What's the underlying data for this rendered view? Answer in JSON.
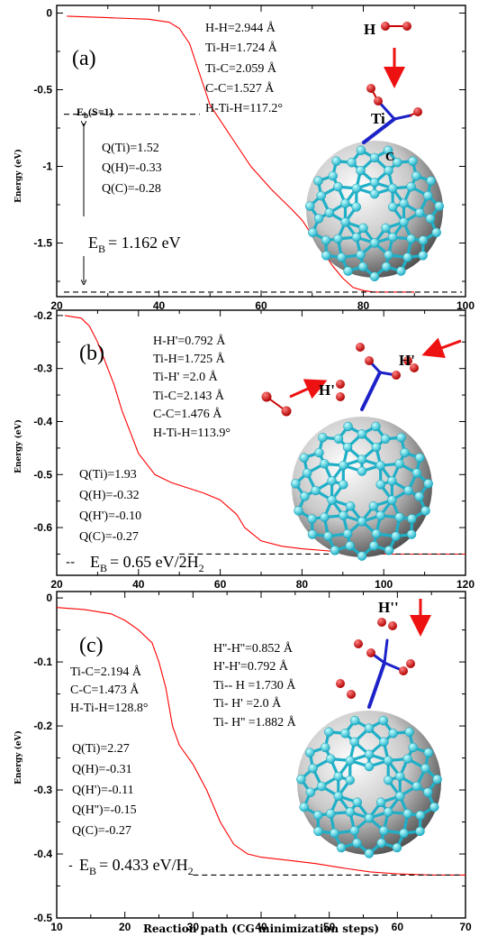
{
  "colors": {
    "curve": "#ff0000",
    "atom_h": "#cc0000",
    "atom_c": "#33d6d6",
    "bond_c": "#1fb0c8",
    "atom_ti": "#1c22c8",
    "arrow": "#ee1111",
    "sphere_light": "#ffffff",
    "sphere_dark": "#4c4c4c"
  },
  "ylabel": "Energy (eV)",
  "xlabel": "Reaction path (CG minimization steps)",
  "chart_data": [
    {
      "type": "line",
      "panel": "(a)",
      "xlim": [
        20,
        100
      ],
      "ylim": [
        -1.85,
        0.05
      ],
      "xticks": [
        "20",
        "40",
        "60",
        "80",
        "100"
      ],
      "yticks": [
        "0",
        "-0.5",
        "-1",
        "-1.5"
      ],
      "ytick_vals": [
        0,
        -0.5,
        -1,
        -1.5
      ],
      "series": [
        {
          "x": [
            22,
            30,
            38,
            42,
            44,
            46,
            48,
            50,
            54,
            58,
            62,
            66,
            68,
            70,
            72,
            74,
            76,
            78,
            80,
            82,
            86,
            90
          ],
          "y": [
            -0.02,
            -0.03,
            -0.04,
            -0.06,
            -0.1,
            -0.2,
            -0.4,
            -0.6,
            -0.8,
            -1.0,
            -1.15,
            -1.28,
            -1.35,
            -1.45,
            -1.55,
            -1.65,
            -1.73,
            -1.79,
            -1.81,
            -1.82,
            -1.82,
            -1.82
          ]
        }
      ],
      "hlines": [
        -0.66,
        -1.82
      ],
      "bind_label": "$E_b$(S=1)",
      "params": [
        "H-H=2.944 Å",
        "Ti-H=1.724 Å",
        "Ti-C=2.059 Å",
        "C-C=1.527 Å",
        "H-Ti-H=117.2°"
      ],
      "charges": [
        "Q(Ti)=1.52",
        "Q(H)=-0.33",
        "Q(C)=-0.28"
      ],
      "eb_sym": "E",
      "eb_sub": "B",
      "eb_rest": "= 1.162 eV",
      "atom_labels": [
        "H",
        "Ti",
        "C"
      ]
    },
    {
      "type": "line",
      "panel": "(b)",
      "xlim": [
        20,
        120
      ],
      "ylim": [
        -0.69,
        -0.19
      ],
      "xticks": [
        "20",
        "40",
        "60",
        "80",
        "100",
        "120"
      ],
      "yticks": [
        "-0.2",
        "-0.3",
        "-0.4",
        "-0.5",
        "-0.6"
      ],
      "ytick_vals": [
        -0.2,
        -0.3,
        -0.4,
        -0.5,
        -0.6
      ],
      "series": [
        {
          "x": [
            22,
            26,
            28,
            30,
            32,
            34,
            36,
            38,
            40,
            44,
            48,
            52,
            56,
            60,
            64,
            66,
            70,
            75,
            80,
            88,
            95,
            100,
            110,
            120
          ],
          "y": [
            -0.2,
            -0.205,
            -0.22,
            -0.25,
            -0.29,
            -0.33,
            -0.38,
            -0.42,
            -0.46,
            -0.5,
            -0.515,
            -0.525,
            -0.535,
            -0.548,
            -0.575,
            -0.6,
            -0.625,
            -0.635,
            -0.64,
            -0.645,
            -0.648,
            -0.65,
            -0.65,
            -0.65
          ]
        }
      ],
      "hlines": [
        -0.65
      ],
      "params": [
        "H-H'=0.792 Å",
        "Ti-H=1.725 Å",
        "Ti-H' =2.0 Å",
        "Ti-C=2.143 Å",
        "C-C=1.476 Å",
        "H-Ti-H=113.9°"
      ],
      "charges": [
        "Q(Ti)=1.93",
        "Q(H)=-0.32",
        "Q(H')=-0.10",
        "Q(C)=-0.27"
      ],
      "eb_sym": "E",
      "eb_sub": "B",
      "eb_rest": "= 0.65 eV/2H",
      "eb_sub2": "2",
      "atom_labels": [
        "H'",
        "H'"
      ]
    },
    {
      "type": "line",
      "panel": "(c)",
      "xlim": [
        10,
        70
      ],
      "ylim": [
        -0.5,
        0.01
      ],
      "xticks": [
        "10",
        "20",
        "30",
        "40",
        "50",
        "60",
        "70"
      ],
      "yticks": [
        "0",
        "-0.1",
        "-0.2",
        "-0.3",
        "-0.4",
        "-0.5"
      ],
      "ytick_vals": [
        0,
        -0.1,
        -0.2,
        -0.3,
        -0.4,
        -0.5
      ],
      "series": [
        {
          "x": [
            10,
            14,
            18,
            20,
            22,
            24,
            25,
            26,
            27,
            28,
            30,
            32,
            34,
            36,
            38,
            40,
            44,
            48,
            52,
            56,
            60,
            65,
            70
          ],
          "y": [
            -0.015,
            -0.018,
            -0.025,
            -0.035,
            -0.05,
            -0.07,
            -0.1,
            -0.14,
            -0.2,
            -0.23,
            -0.26,
            -0.3,
            -0.35,
            -0.385,
            -0.4,
            -0.405,
            -0.41,
            -0.415,
            -0.422,
            -0.428,
            -0.431,
            -0.433,
            -0.433
          ]
        }
      ],
      "hlines": [
        -0.433
      ],
      "params": [
        "H''-H''=0.852 Å",
        "H'-H'=0.792 Å",
        "Ti-- H =1.730 Å",
        "Ti- H' =2.0 Å",
        "Ti- H'' =1.882 Å"
      ],
      "params2": [
        "Ti-C=2.194 Å",
        "C-C=1.473 Å",
        "H-Ti-H=128.8°"
      ],
      "charges": [
        "Q(Ti)=2.27",
        "Q(H)=-0.31",
        "Q(H')=-0.11",
        "Q(H'')=-0.15",
        "Q(C)=-0.27"
      ],
      "eb_sym": "E",
      "eb_sub": "B",
      "eb_rest": "= 0.433 eV/H",
      "eb_sub2": "2",
      "atom_labels": [
        "H''"
      ]
    }
  ]
}
